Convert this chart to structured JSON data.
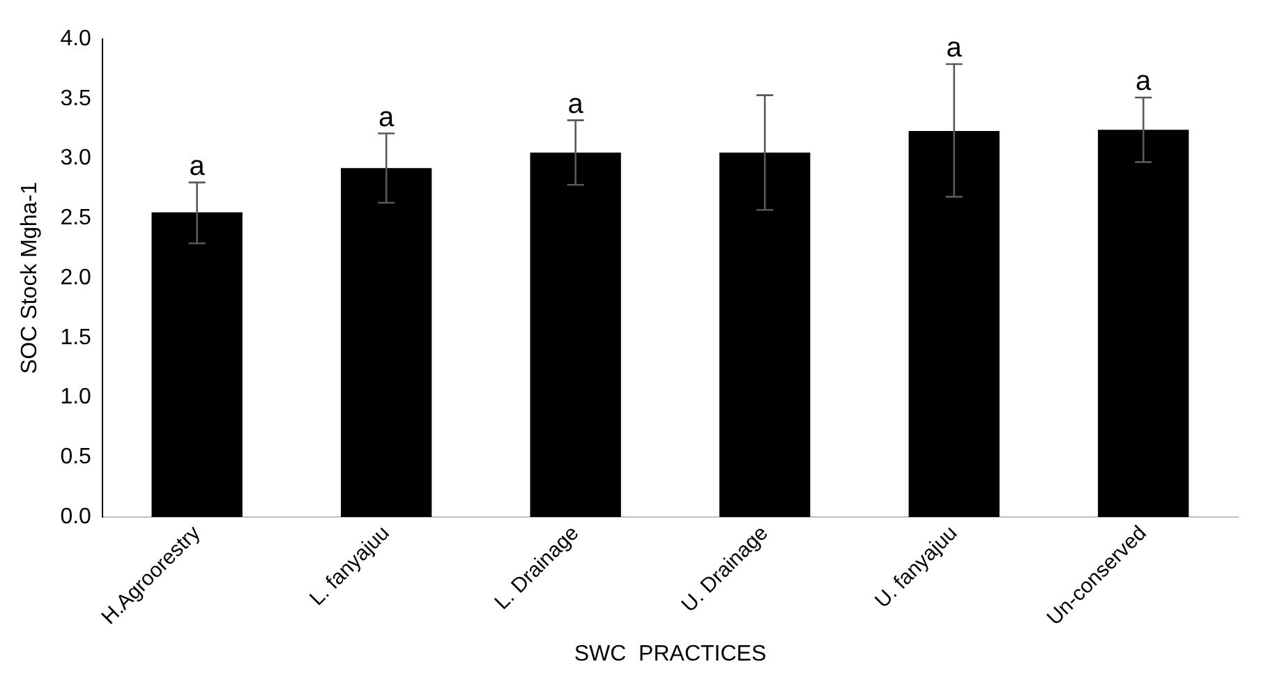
{
  "chart_data": {
    "type": "bar",
    "xlabel": "SWC  PRACTICES",
    "ylabel": "SOC Stock Mgha-1",
    "categories": [
      "H.Agroorestry",
      "L. fanyajuu",
      "L. Drainage",
      "U. Drainage",
      "U. fanyajuu",
      "Un-conserved"
    ],
    "values": [
      2.55,
      2.92,
      3.05,
      3.05,
      3.23,
      3.24
    ],
    "color": "#000000",
    "errors": [
      [
        2.29,
        2.8
      ],
      [
        2.63,
        3.21
      ],
      [
        2.78,
        3.32
      ],
      [
        2.57,
        3.53
      ],
      [
        2.68,
        3.79
      ],
      [
        2.97,
        3.51
      ]
    ],
    "ylim": [
      0,
      4
    ],
    "yticks": [
      {
        "value": 0,
        "label": "0.0"
      },
      {
        "value": 0.5,
        "label": "0.5"
      },
      {
        "value": 1,
        "label": "1.0"
      },
      {
        "value": 1.5,
        "label": "1.5"
      },
      {
        "value": 2,
        "label": "2.0"
      },
      {
        "value": 2.5,
        "label": "2.5"
      },
      {
        "value": 3,
        "label": "3.0"
      },
      {
        "value": 3.5,
        "label": "3.5"
      },
      {
        "value": 4,
        "label": "4.0"
      }
    ],
    "grid": false,
    "legend": false,
    "annotations": [
      {
        "text": "a",
        "x": "H.Agroorestry",
        "y": 2.8
      },
      {
        "text": "a",
        "x": "L. fanyajuu",
        "y": 3.21
      },
      {
        "text": "a",
        "x": "L. Drainage",
        "y": 3.32
      },
      {
        "text": "a",
        "x": "U. fanyajuu",
        "y": 3.79
      },
      {
        "text": "a",
        "x": "Un-conserved",
        "y": 3.51
      }
    ]
  }
}
